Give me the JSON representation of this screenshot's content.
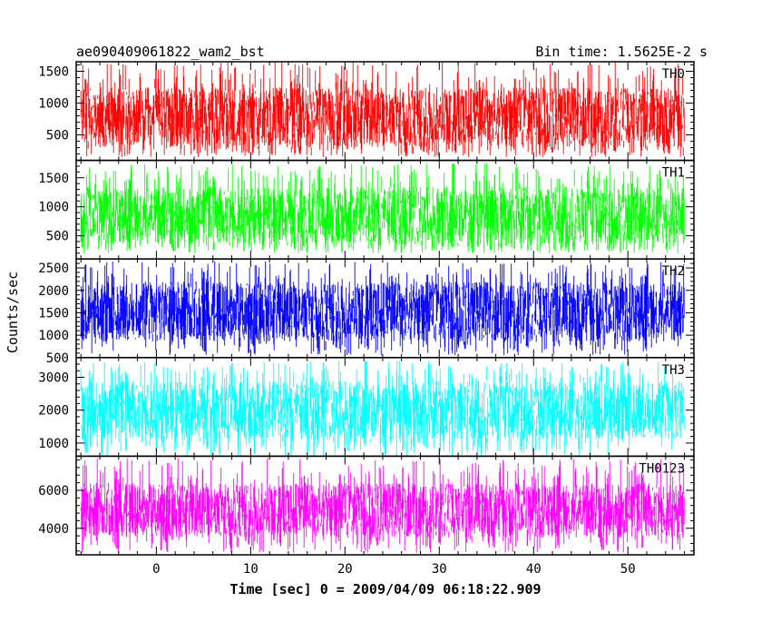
{
  "chart_data": {
    "type": "line",
    "title": "ae090409061822_wam2_bst",
    "subtitle": "Bin time: 1.5625E-2 s",
    "xlabel": "Time [sec] 0 = 2009/04/09 06:18:22.909",
    "ylabel": "Counts/sec",
    "xlim": [
      -8.5,
      57
    ],
    "xticks": [
      0,
      10,
      20,
      30,
      40,
      50
    ],
    "x_range_data": [
      -8,
      56
    ],
    "panels": [
      {
        "name": "TH0",
        "color": "#ff0000",
        "ylim": [
          100,
          1650
        ],
        "yticks": [
          500,
          1000,
          1500
        ],
        "data_range": [
          150,
          1650
        ],
        "typical_range": [
          300,
          1250
        ]
      },
      {
        "name": "TH1",
        "color": "#00ff00",
        "ylim": [
          100,
          1800
        ],
        "yticks": [
          500,
          1000,
          1500
        ],
        "data_range": [
          200,
          1750
        ],
        "typical_range": [
          350,
          1350
        ]
      },
      {
        "name": "TH2",
        "color": "#0000ff",
        "ylim": [
          500,
          2700
        ],
        "yticks": [
          500,
          1000,
          1500,
          2000,
          2500
        ],
        "data_range": [
          550,
          2650
        ],
        "typical_range": [
          850,
          2200
        ]
      },
      {
        "name": "TH3",
        "color": "#00ffff",
        "ylim": [
          600,
          3600
        ],
        "yticks": [
          1000,
          2000,
          3000
        ],
        "data_range": [
          600,
          3500
        ],
        "typical_range": [
          1100,
          2900
        ]
      },
      {
        "name": "TH0123",
        "color": "#ff00ff",
        "ylim": [
          2600,
          7800
        ],
        "yticks": [
          4000,
          6000
        ],
        "data_range": [
          2700,
          7700
        ],
        "typical_range": [
          3500,
          6400
        ]
      }
    ]
  }
}
